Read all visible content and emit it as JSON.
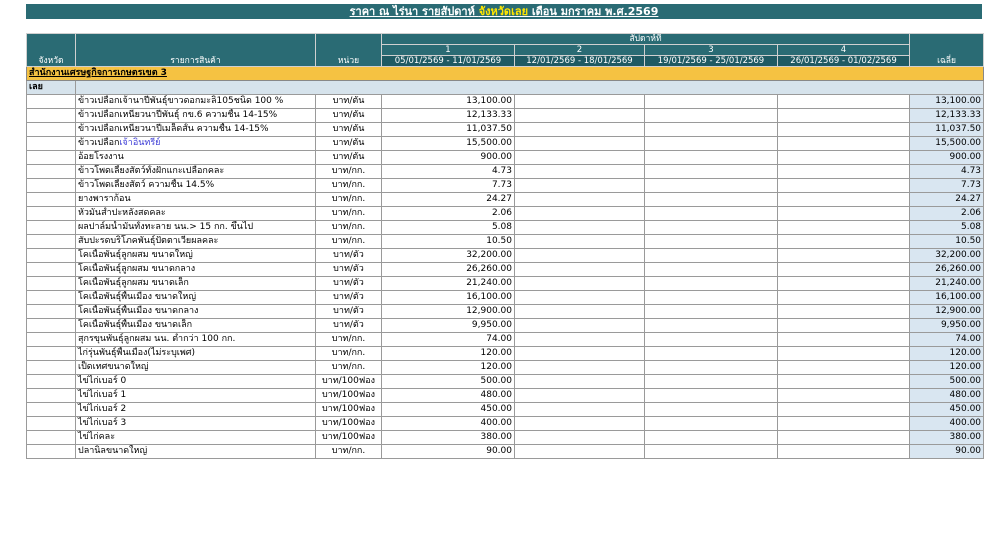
{
  "title": {
    "prefix": "ราคา ณ ไร่นา รายสัปดาห์ ",
    "province_highlight": "จังหวัดเลย",
    "suffix": " เดือน มกราคม พ.ศ.2569"
  },
  "headers": {
    "province": "จังหวัด",
    "item": "รายการสินค้า",
    "unit": "หน่วย",
    "week_group": "สัปดาห์ที่",
    "average": "เฉลี่ย",
    "weeks": [
      {
        "num": "1",
        "range": "05/01/2569 - 11/01/2569"
      },
      {
        "num": "2",
        "range": "12/01/2569 - 18/01/2569"
      },
      {
        "num": "3",
        "range": "19/01/2569 - 25/01/2569"
      },
      {
        "num": "4",
        "range": "26/01/2569 - 01/02/2569"
      }
    ]
  },
  "office": "สำนักงานเศรษฐกิจการเกษตรเขต 3",
  "province": "เลย",
  "rows": [
    {
      "item": "ข้าวเปลือกเจ้านาปีพันธุ์ขาวดอกมะลิ105ชนิด 100 %",
      "unit": "บาท/ตัน",
      "w1": "13,100.00",
      "avg": "13,100.00"
    },
    {
      "item": "ข้าวเปลือกเหนียวนาปีพันธุ์ กข.6 ความชื้น 14-15%",
      "unit": "บาท/ตัน",
      "w1": "12,133.33",
      "avg": "12,133.33"
    },
    {
      "item": "ข้าวเปลือกเหนียวนาปีเมล็ดสั้น ความชื้น 14-15%",
      "unit": "บาท/ตัน",
      "w1": "11,037.50",
      "avg": "11,037.50"
    },
    {
      "item_a": "ข้าวเปลือก",
      "item_b": "เจ้าอินทรีย์",
      "unit": "บาท/ตัน",
      "w1": "15,500.00",
      "avg": "15,500.00"
    },
    {
      "item": "อ้อยโรงงาน",
      "unit": "บาท/ตัน",
      "w1": "900.00",
      "avg": "900.00"
    },
    {
      "item": "ข้าวโพดเลี้ยงสัตว์ทั้งฝักแกะเปลือกคละ",
      "unit": "บาท/กก.",
      "w1": "4.73",
      "avg": "4.73"
    },
    {
      "item": "ข้าวโพดเลี้ยงสัตว์ ความชื้น 14.5%",
      "unit": "บาท/กก.",
      "w1": "7.73",
      "avg": "7.73"
    },
    {
      "item": "ยางพาราก้อน",
      "unit": "บาท/กก.",
      "w1": "24.27",
      "avg": "24.27"
    },
    {
      "item": "หัวมันสำปะหลังสดคละ",
      "unit": "บาท/กก.",
      "w1": "2.06",
      "avg": "2.06"
    },
    {
      "item": "ผลปาล์มน้ำมันทั้งทะลาย นน.> 15 กก. ขึ้นไป",
      "unit": "บาท/กก.",
      "w1": "5.08",
      "avg": "5.08"
    },
    {
      "item": "สับปะรดบริโภคพันธุ์ปัตตาเวียผลคละ",
      "unit": "บาท/กก.",
      "w1": "10.50",
      "avg": "10.50"
    },
    {
      "item": "โคเนื้อพันธุ์ลูกผสม ขนาดใหญ่",
      "unit": "บาท/ตัว",
      "w1": "32,200.00",
      "avg": "32,200.00"
    },
    {
      "item": "โคเนื้อพันธุ์ลูกผสม ขนาดกลาง",
      "unit": "บาท/ตัว",
      "w1": "26,260.00",
      "avg": "26,260.00"
    },
    {
      "item": "โคเนื้อพันธุ์ลูกผสม ขนาดเล็ก",
      "unit": "บาท/ตัว",
      "w1": "21,240.00",
      "avg": "21,240.00"
    },
    {
      "item": "โคเนื้อพันธุ์พื้นเมือง ขนาดใหญ่",
      "unit": "บาท/ตัว",
      "w1": "16,100.00",
      "avg": "16,100.00"
    },
    {
      "item": "โคเนื้อพันธุ์พื้นเมือง ขนาดกลาง",
      "unit": "บาท/ตัว",
      "w1": "12,900.00",
      "avg": "12,900.00"
    },
    {
      "item": "โคเนื้อพันธุ์พื้นเมือง ขนาดเล็ก",
      "unit": "บาท/ตัว",
      "w1": "9,950.00",
      "avg": "9,950.00"
    },
    {
      "item": "สุกรขุนพันธุ์ลูกผสม นน. ต่ำกว่า 100 กก.",
      "unit": "บาท/กก.",
      "w1": "74.00",
      "avg": "74.00"
    },
    {
      "item": "ไก่รุ่นพันธุ์พื้นเมือง(ไม่ระบุเพศ)",
      "unit": "บาท/กก.",
      "w1": "120.00",
      "avg": "120.00"
    },
    {
      "item": "เป็ดเทศขนาดใหญ่",
      "unit": "บาท/กก.",
      "w1": "120.00",
      "avg": "120.00"
    },
    {
      "item": "ไข่ไก่เบอร์ 0",
      "unit": "บาท/100ฟอง",
      "w1": "500.00",
      "avg": "500.00"
    },
    {
      "item": "ไข่ไก่เบอร์ 1",
      "unit": "บาท/100ฟอง",
      "w1": "480.00",
      "avg": "480.00"
    },
    {
      "item": "ไข่ไก่เบอร์ 2",
      "unit": "บาท/100ฟอง",
      "w1": "450.00",
      "avg": "450.00"
    },
    {
      "item": "ไข่ไก่เบอร์ 3",
      "unit": "บาท/100ฟอง",
      "w1": "400.00",
      "avg": "400.00"
    },
    {
      "item": "ไข่ไก่คละ",
      "unit": "บาท/100ฟอง",
      "w1": "380.00",
      "avg": "380.00"
    },
    {
      "item": "ปลานิลขนาดใหญ่",
      "unit": "บาท/กก.",
      "w1": "90.00",
      "avg": "90.00"
    }
  ]
}
